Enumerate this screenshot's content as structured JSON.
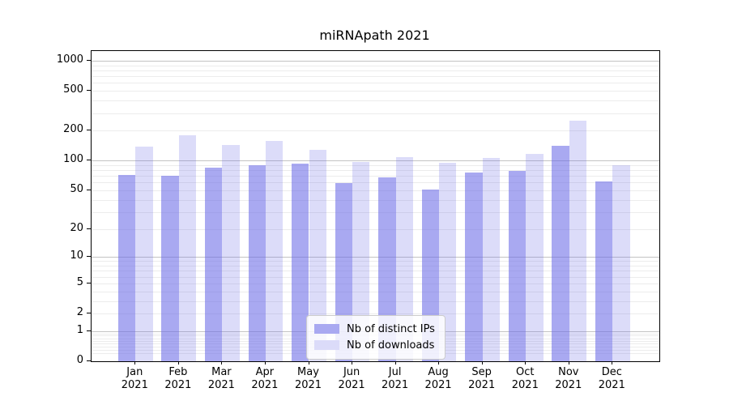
{
  "chart_data": {
    "type": "bar",
    "title": "miRNApath 2021",
    "y_scale": "log10(1+v)",
    "ylim": [
      0,
      1250
    ],
    "yticks": [
      0,
      1,
      2,
      5,
      10,
      20,
      50,
      100,
      200,
      500,
      1000
    ],
    "grid": "major and minor horizontal gridlines, drawn under translucent bars",
    "legend_position": "lower center",
    "categories": [
      "Jan 2021",
      "Feb 2021",
      "Mar 2021",
      "Apr 2021",
      "May 2021",
      "Jun 2021",
      "Jul 2021",
      "Aug 2021",
      "Sep 2021",
      "Oct 2021",
      "Nov 2021",
      "Dec 2021"
    ],
    "series": [
      {
        "name": "Nb of distinct IPs",
        "legend_color": "#a9a9f1",
        "bar_rgba": "rgba(102,102,230,0.56)",
        "values": [
          71,
          70,
          84,
          89,
          94,
          59,
          68,
          51,
          75,
          78,
          140,
          62
        ]
      },
      {
        "name": "Nb of downloads",
        "legend_color": "#dbdbf9",
        "bar_rgba": "rgba(102,102,230,0.23)",
        "values": [
          138,
          178,
          143,
          158,
          128,
          97,
          109,
          95,
          106,
          117,
          250,
          89
        ]
      }
    ],
    "colors": {
      "grid_major": "#c3c3c3",
      "grid_minor": "#ececec",
      "axis": "#000000",
      "legend_border": "#cccccc"
    }
  }
}
